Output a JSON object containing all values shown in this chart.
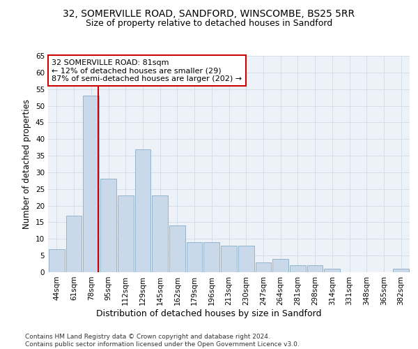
{
  "title1": "32, SOMERVILLE ROAD, SANDFORD, WINSCOMBE, BS25 5RR",
  "title2": "Size of property relative to detached houses in Sandford",
  "xlabel": "Distribution of detached houses by size in Sandford",
  "ylabel": "Number of detached properties",
  "categories": [
    "44sqm",
    "61sqm",
    "78sqm",
    "95sqm",
    "112sqm",
    "129sqm",
    "145sqm",
    "162sqm",
    "179sqm",
    "196sqm",
    "213sqm",
    "230sqm",
    "247sqm",
    "264sqm",
    "281sqm",
    "298sqm",
    "314sqm",
    "331sqm",
    "348sqm",
    "365sqm",
    "382sqm"
  ],
  "values": [
    7,
    17,
    53,
    28,
    23,
    37,
    23,
    14,
    9,
    9,
    8,
    8,
    3,
    4,
    2,
    2,
    1,
    0,
    0,
    0,
    1
  ],
  "bar_color": "#c9d9ea",
  "bar_edge_color": "#8aaec8",
  "grid_color": "#d4dde8",
  "background_color": "#edf2f8",
  "annotation_text": "32 SOMERVILLE ROAD: 81sqm\n← 12% of detached houses are smaller (29)\n87% of semi-detached houses are larger (202) →",
  "annotation_box_color": "#ffffff",
  "annotation_box_edge": "#cc0000",
  "vline_color": "#cc0000",
  "vline_x_index": 2,
  "ylim": [
    0,
    65
  ],
  "yticks": [
    0,
    5,
    10,
    15,
    20,
    25,
    30,
    35,
    40,
    45,
    50,
    55,
    60,
    65
  ],
  "footer": "Contains HM Land Registry data © Crown copyright and database right 2024.\nContains public sector information licensed under the Open Government Licence v3.0.",
  "title1_fontsize": 10,
  "title2_fontsize": 9,
  "xlabel_fontsize": 9,
  "ylabel_fontsize": 8.5,
  "tick_fontsize": 7.5,
  "annotation_fontsize": 8,
  "footer_fontsize": 6.5
}
